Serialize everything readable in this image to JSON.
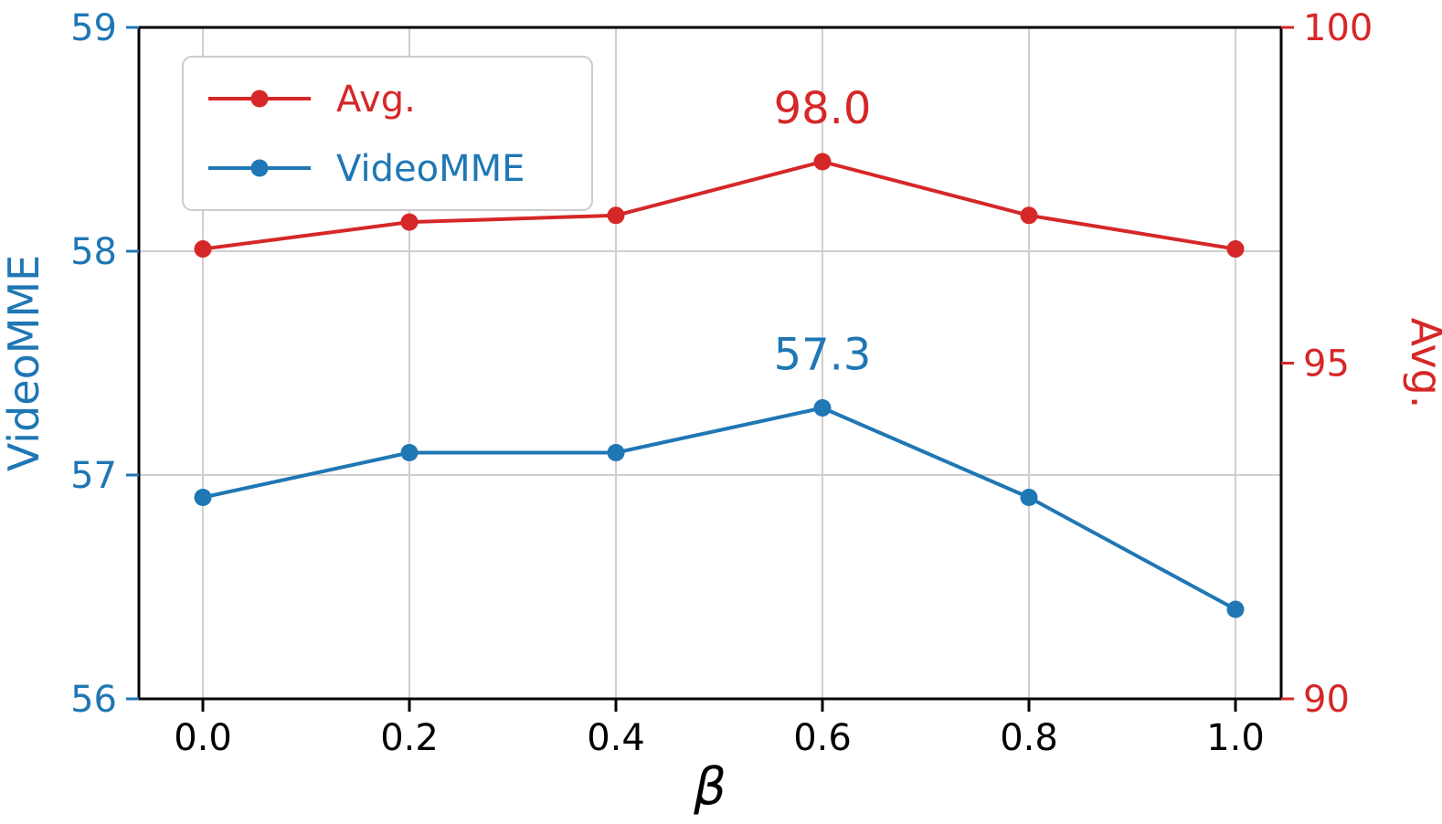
{
  "figure": {
    "background": "#ffffff"
  },
  "chart_data": {
    "type": "line",
    "x": [
      0.0,
      0.2,
      0.4,
      0.6,
      0.8,
      1.0
    ],
    "x_tick_labels": [
      "0.0",
      "0.2",
      "0.4",
      "0.6",
      "0.8",
      "1.0"
    ],
    "xlabel": "β",
    "grid": true,
    "legend": {
      "position": "upper-left"
    },
    "left_axis": {
      "label": "VideoMME",
      "color": "#1f77b4",
      "range": [
        56,
        59
      ],
      "ticks": [
        56,
        57,
        58,
        59
      ]
    },
    "right_axis": {
      "label": "Avg.",
      "color": "#d62728",
      "range": [
        90,
        100
      ],
      "ticks": [
        90,
        95,
        100
      ]
    },
    "series": [
      {
        "name": "Avg.",
        "axis": "right",
        "color": "#d62728",
        "values": [
          96.7,
          97.1,
          97.2,
          98.0,
          97.2,
          96.7
        ],
        "annotation": {
          "text": "98.0",
          "index": 3
        }
      },
      {
        "name": "VideoMME",
        "axis": "left",
        "color": "#1f77b4",
        "values": [
          56.9,
          57.1,
          57.1,
          57.3,
          56.9,
          56.4
        ],
        "annotation": {
          "text": "57.3",
          "index": 3
        }
      }
    ]
  }
}
